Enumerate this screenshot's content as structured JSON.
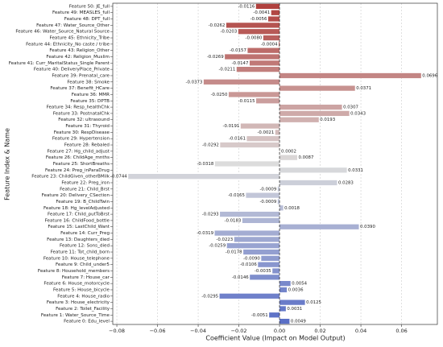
{
  "chart_data": {
    "type": "barh",
    "x_label": "Coefficient Value (Impact on Model Output)",
    "y_label": "Feature Index & Name",
    "categories": [
      "Feature 50: JE_full",
      "Feature 49: MEASLES_full",
      "Feature 48: DPT_full",
      "Feature 47: Water_Source_Other",
      "Feature 46: Water_Source_Natural Source",
      "Feature 45: Ethnicity_Tribe",
      "Feature 44: Ethnicity_No caste / tribe",
      "Feature 43: Religion_Other",
      "Feature 42: Religion_Muslim",
      "Feature 41: Curr_MaritalStatus_Single Parent",
      "Feature 40: DeliveryPlace_Private",
      "Feature 39: Prenatal_care",
      "Feature 38: Smoke",
      "Feature 37: Benefit_HCare",
      "Feature 36: MMR",
      "Feature 35: DPTB",
      "Feature 34: Resp_healthChk",
      "Feature 33: PostnatalChk",
      "Feature 32: ultrasound",
      "Feature 31: Thyroid",
      "Feature 30: RespDisease",
      "Feature 29: Hypertension",
      "Feature 28: Rebaled",
      "Feature 27: Hg_child_adjust",
      "Feature 26: ChildAge_mnths",
      "Feature 25: ShortBreaths",
      "Feature 24: Preg_inParaDrug",
      "Feature 23: ChildGiven_otherBMilk",
      "Feature 22: Preg_iron",
      "Feature 21: Child_Brst",
      "Feature 20: Delivery_CSection",
      "Feature 19: B_ChildTwin",
      "Feature 18: Hg_levelAdjusted",
      "Feature 17: Child_putToBrst",
      "Feature 16: ChildFood_bottle",
      "Feature 15: LastChild_Want",
      "Feature 14: Curr_Preg",
      "Feature 13: Daughters_died",
      "Feature 12: Sons_died",
      "Feature 11: Tot_child_born",
      "Feature 10: House_telephone",
      "Feature 9: Child_under5",
      "Feature 8: Household_members",
      "Feature 7: House_car",
      "Feature 6: House_motorcycle",
      "Feature 5: House_bicycle",
      "Feature 4: House_radio",
      "Feature 3: House_electricity",
      "Feature 2: Toilet_Facility",
      "Feature 1: Water_Source_Time",
      "Feature 0: Edu_level"
    ],
    "values": [
      -0.0116,
      -0.0041,
      -0.0056,
      -0.0262,
      -0.0203,
      -0.008,
      -0.0004,
      -0.0157,
      -0.0269,
      -0.0147,
      -0.0211,
      0.0696,
      -0.0373,
      0.0371,
      -0.025,
      -0.0115,
      0.0307,
      0.0343,
      0.0193,
      -0.0191,
      -0.0021,
      -0.0161,
      -0.0292,
      0.0002,
      0.0087,
      -0.0318,
      0.0331,
      -0.0744,
      0.0283,
      -0.0009,
      -0.0165,
      -0.0009,
      0.0018,
      -0.0293,
      -0.0183,
      0.039,
      -0.0319,
      -0.0223,
      -0.0259,
      -0.0178,
      -0.009,
      -0.0106,
      -0.0035,
      -0.0146,
      0.0054,
      0.0036,
      -0.0295,
      0.0125,
      0.0031,
      -0.0051,
      0.0049
    ],
    "value_labels": [
      "-0.0116",
      "-0.0041",
      "-0.0056",
      "-0.0262",
      "-0.0203",
      "-0.0080",
      "-0.0004",
      "-0.0157",
      "-0.0269",
      "-0.0147",
      "-0.0211",
      "0.0696",
      "-0.0373",
      "0.0371",
      "-0.0250",
      "-0.0115",
      "0.0307",
      "0.0343",
      "0.0193",
      "-0.0191",
      "-0.0021",
      "-0.0161",
      "-0.0292",
      "0.0002",
      "0.0087",
      "-0.0318",
      "0.0331",
      "-0.0744",
      "0.0283",
      "-0.0009",
      "-0.0165",
      "-0.0009",
      "0.0018",
      "-0.0293",
      "-0.0183",
      "0.0390",
      "-0.0319",
      "-0.0223",
      "-0.0259",
      "-0.0178",
      "-0.0090",
      "-0.0106",
      "-0.0035",
      "-0.0146",
      "0.0054",
      "0.0036",
      "-0.0295",
      "0.0125",
      "0.0031",
      "-0.0051",
      "0.0049"
    ],
    "colormap": [
      "#b0413e",
      "#dcdcdc",
      "#5a6fc6"
    ],
    "xlim": [
      -0.082,
      0.0776
    ],
    "xticks": [
      {
        "value": -0.08,
        "label": "−0.08"
      },
      {
        "value": -0.06,
        "label": "−0.06"
      },
      {
        "value": -0.04,
        "label": "−0.04"
      },
      {
        "value": -0.02,
        "label": "−0.02"
      },
      {
        "value": 0,
        "label": "0.00"
      },
      {
        "value": 0.02,
        "label": "0.02"
      },
      {
        "value": 0.04,
        "label": "0.04"
      },
      {
        "value": 0.06,
        "label": "0.06"
      }
    ],
    "grid": true
  }
}
